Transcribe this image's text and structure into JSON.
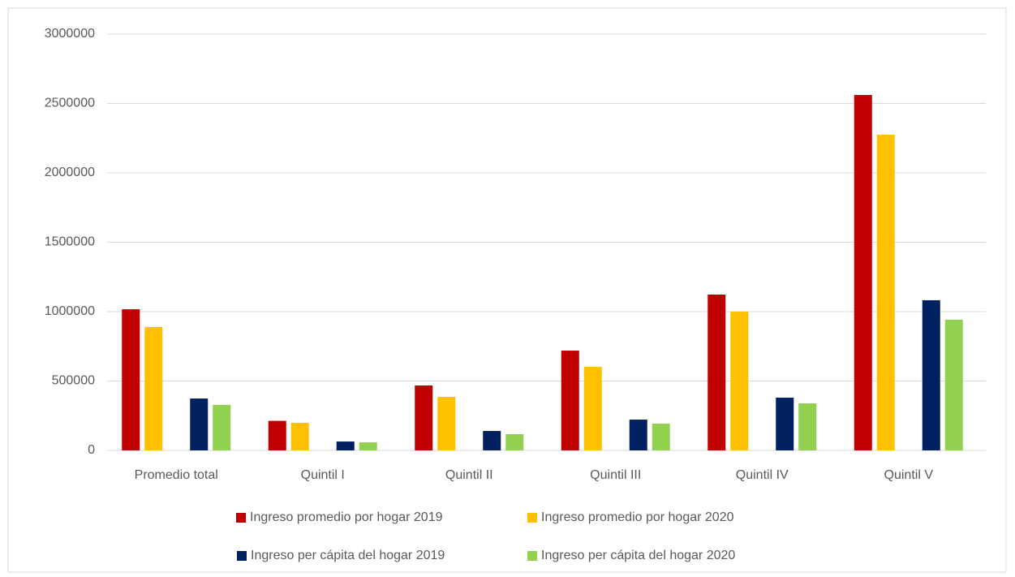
{
  "chart_data": {
    "type": "bar",
    "categories": [
      "Promedio total",
      "Quintil I",
      "Quintil II",
      "Quintil III",
      "Quintil IV",
      "Quintil V"
    ],
    "series": [
      {
        "name": "Ingreso promedio por hogar 2019",
        "color": "#c00000",
        "values": [
          1017000,
          213000,
          468000,
          719000,
          1123000,
          2561000
        ]
      },
      {
        "name": "Ingreso promedio por hogar 2020",
        "color": "#ffc000",
        "values": [
          889000,
          199000,
          386000,
          602000,
          1000000,
          2275000
        ]
      },
      {
        "name": "Ingreso per cápita del hogar 2019",
        "color": "#002060",
        "values": [
          374000,
          64000,
          140000,
          222000,
          380000,
          1082000
        ]
      },
      {
        "name": "Ingreso per cápita del hogar 2020",
        "color": "#92d050",
        "values": [
          328000,
          58000,
          117000,
          193000,
          339000,
          942000
        ]
      }
    ],
    "ylim": [
      0,
      3000000
    ],
    "yticks": [
      0,
      500000,
      1000000,
      1500000,
      2000000,
      2500000,
      3000000
    ],
    "grid": true
  }
}
